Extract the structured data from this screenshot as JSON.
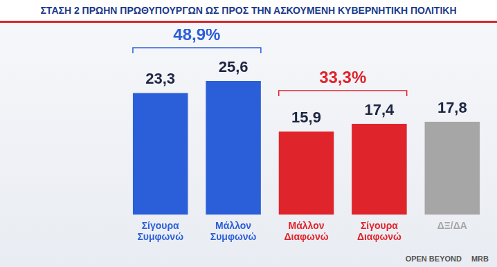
{
  "chart_data": {
    "type": "bar",
    "title": "ΣΤΑΣΗ 2 ΠΡΩΗΝ ΠΡΩΘΥΠΟΥΡΓΩΝ ΩΣ ΠΡΟΣ ΤΗΝ ΑΣΚΟΥΜΕΝΗ ΚΥΒΕΡΝΗΤΙΚΗ ΠΟΛΙΤΙΚΗ",
    "categories": [
      "Σίγουρα Συμφωνώ",
      "Μάλλον Συμφωνώ",
      "Μάλλον Διαφωνώ",
      "Σίγουρα Διαφωνώ",
      "ΔΞ/ΔΑ"
    ],
    "values": [
      23.3,
      25.6,
      15.9,
      17.4,
      17.8
    ],
    "value_labels": [
      "23,3",
      "25,6",
      "15,9",
      "17,4",
      "17,8"
    ],
    "colors": [
      "#2b5fd9",
      "#2b5fd9",
      "#e0242b",
      "#e0242b",
      "#a6a6a6"
    ],
    "data_labels": true,
    "grid": false,
    "tick_labels": "x",
    "annotations": [
      {
        "text": "48,9%",
        "categories": [
          "Σίγουρα Συμφωνώ",
          "Μάλλον Συμφωνώ"
        ],
        "color": "#2b5fd9"
      },
      {
        "text": "33,3%",
        "categories": [
          "Μάλλον Διαφωνώ",
          "Σίγουρα Διαφωνώ"
        ],
        "color": "#e0242b"
      }
    ],
    "logos": [
      "OPEN BEYOND",
      "MRB"
    ]
  }
}
